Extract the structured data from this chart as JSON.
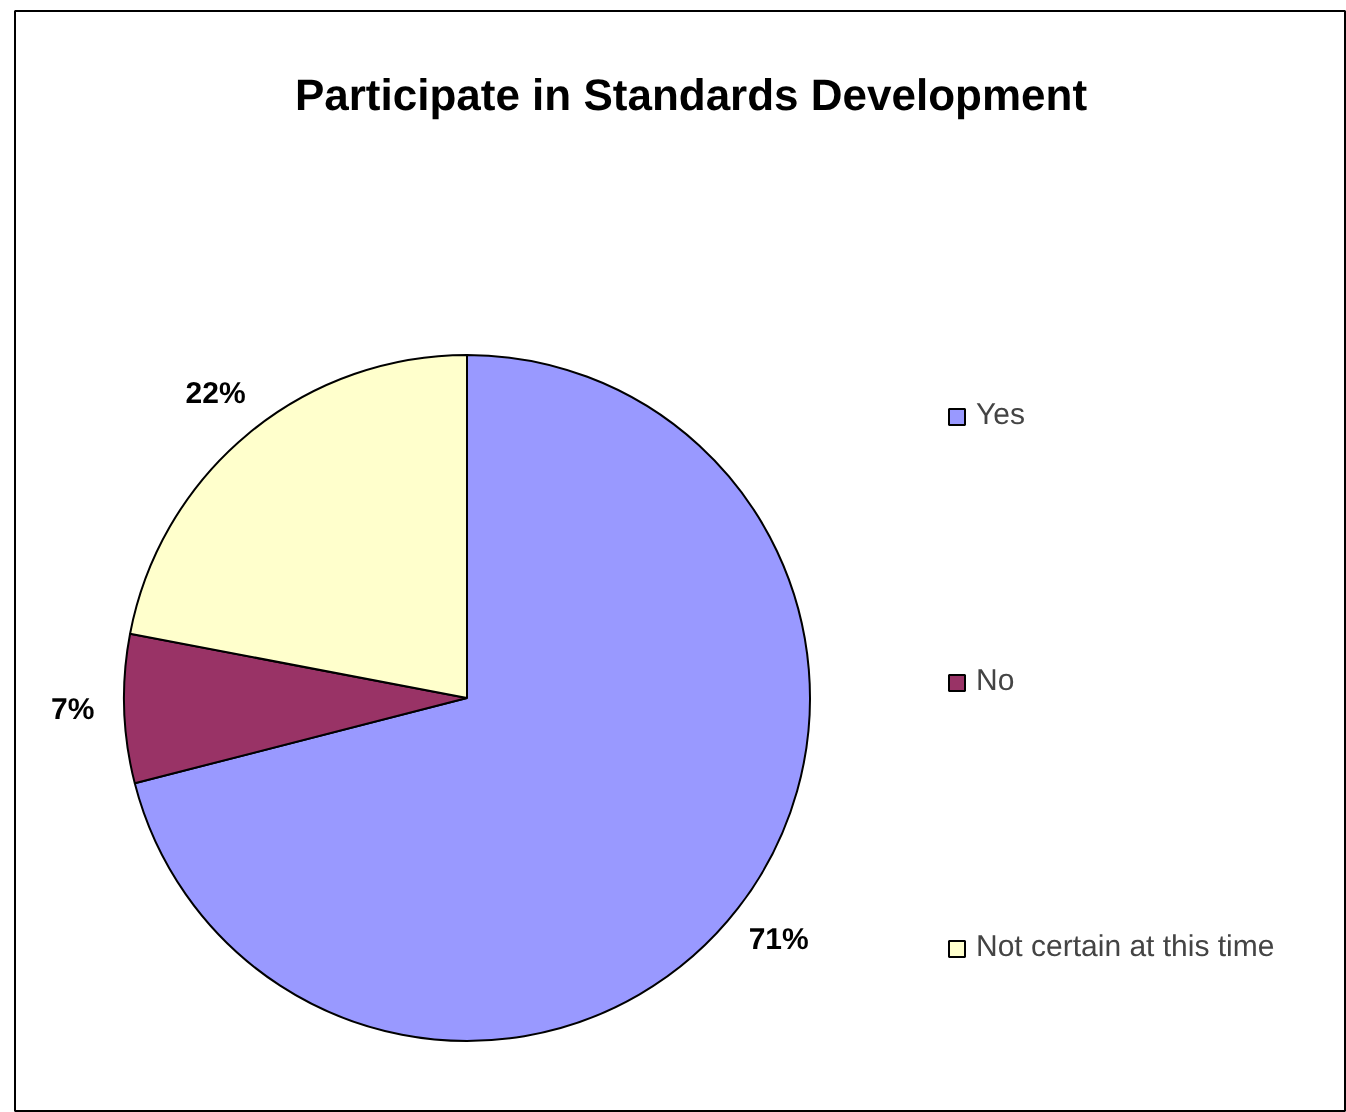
{
  "chart_data": {
    "type": "pie",
    "title": "Participate in Standards Development",
    "categories": [
      "Yes",
      "No",
      "Not certain at this time"
    ],
    "values": [
      71,
      7,
      22
    ],
    "colors": [
      "#9999ff",
      "#993366",
      "#ffffcc"
    ],
    "value_labels": [
      "71%",
      "7%",
      "22%"
    ],
    "legend": "right"
  }
}
